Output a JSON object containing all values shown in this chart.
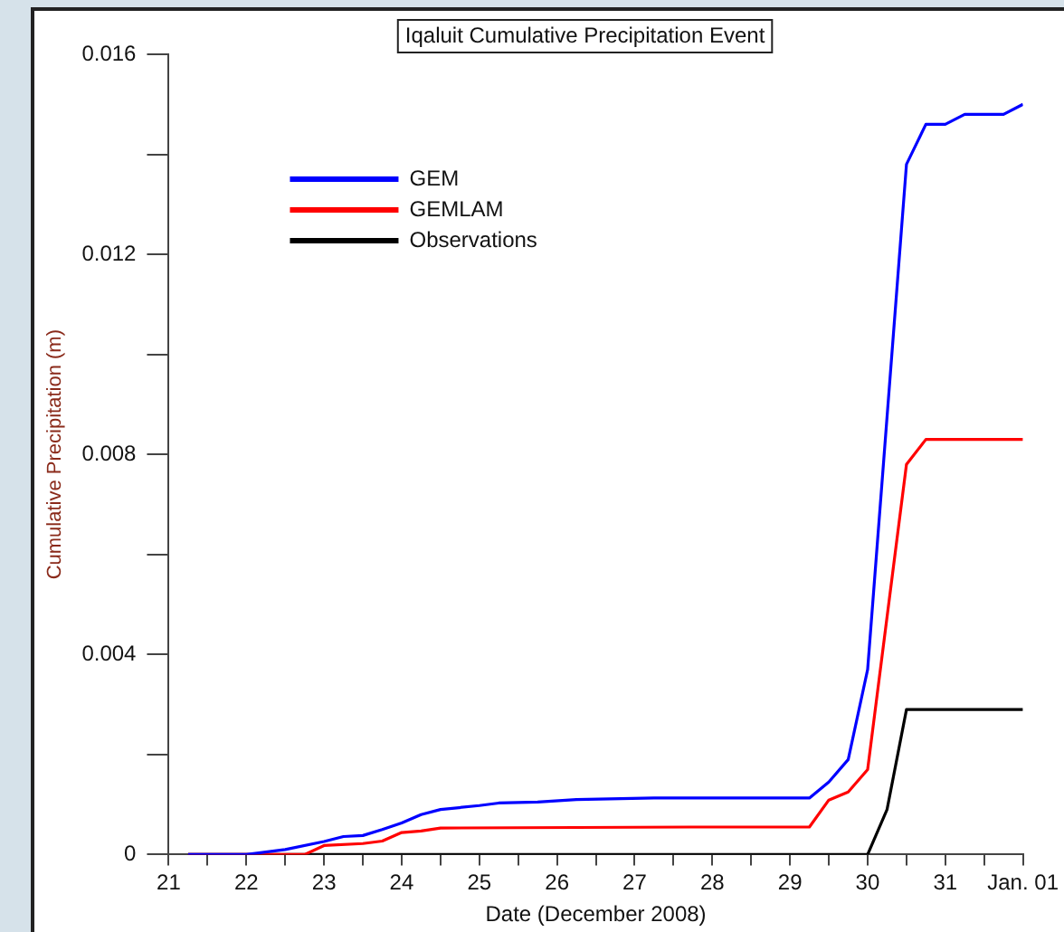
{
  "chart_data": {
    "type": "line",
    "title": "Iqaluit Cumulative Precipitation Event",
    "xlabel": "Date (December 2008)",
    "ylabel": "Cumulative Precipitation (m)",
    "xlim": [
      21,
      32
    ],
    "xticks": [
      21,
      {
        "value": 21.5,
        "label": null
      },
      22,
      {
        "value": 22.5,
        "label": null
      },
      23,
      {
        "value": 23.5,
        "label": null
      },
      24,
      {
        "value": 24.5,
        "label": null
      },
      25,
      {
        "value": 25.5,
        "label": null
      },
      26,
      {
        "value": 26.5,
        "label": null
      },
      27,
      {
        "value": 27.5,
        "label": null
      },
      28,
      {
        "value": 28.5,
        "label": null
      },
      29,
      {
        "value": 29.5,
        "label": null
      },
      30,
      {
        "value": 30.5,
        "label": null
      },
      31,
      {
        "value": 31.5,
        "label": null
      },
      {
        "value": 32,
        "label": "Jan. 01"
      }
    ],
    "ylim": [
      0,
      0.016
    ],
    "yticks": [
      0,
      {
        "value": 0.002,
        "label": null
      },
      0.004,
      {
        "value": 0.006,
        "label": null
      },
      0.008,
      {
        "value": 0.01,
        "label": null
      },
      0.012,
      {
        "value": 0.014,
        "label": null
      },
      0.016
    ],
    "grid": false,
    "legend": "top left",
    "marker": "none",
    "line_style": "solid",
    "series": [
      {
        "name": "GEM",
        "color": "#0000ff",
        "x": [
          21.25,
          22,
          22.5,
          23,
          23.25,
          23.5,
          23.75,
          24,
          24.25,
          24.5,
          25,
          25.25,
          25.75,
          26.25,
          27.25,
          29.25,
          29.5,
          29.75,
          30,
          30.5,
          30.75,
          31,
          31.25,
          31.5,
          31.75,
          32
        ],
        "values": [
          0,
          0,
          0.0001,
          0.00026,
          0.00036,
          0.00038,
          0.0005,
          0.00063,
          0.0008,
          0.0009,
          0.00098,
          0.00103,
          0.00105,
          0.0011,
          0.00113,
          0.00113,
          0.00145,
          0.0019,
          0.0037,
          0.0138,
          0.0146,
          0.0146,
          0.0148,
          0.0148,
          0.0148,
          0.015
        ]
      },
      {
        "name": "GEMLAM",
        "color": "#ff0000",
        "x": [
          21.25,
          22.5,
          22.75,
          23,
          23.5,
          23.75,
          24,
          24.25,
          24.5,
          27.75,
          29.25,
          29.5,
          29.75,
          30,
          30.5,
          30.75,
          32
        ],
        "values": [
          0,
          0,
          0,
          0.00018,
          0.00022,
          0.00027,
          0.00044,
          0.00047,
          0.00053,
          0.00055,
          0.00055,
          0.00109,
          0.00125,
          0.0017,
          0.0078,
          0.0083,
          0.0083
        ]
      },
      {
        "name": "Observations",
        "color": "#000000",
        "x": [
          21.25,
          30,
          30.25,
          30.5,
          32
        ],
        "values": [
          0,
          0,
          0.0009,
          0.0029,
          0.0029
        ]
      }
    ]
  }
}
